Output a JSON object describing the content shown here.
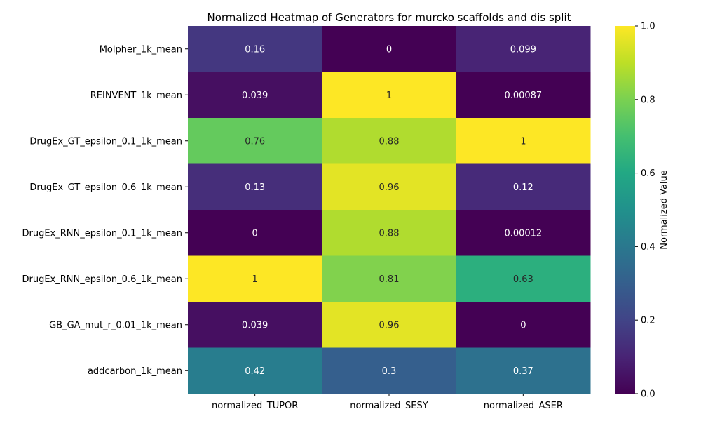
{
  "chart_data": {
    "type": "heatmap",
    "title": "Normalized Heatmap of Generators for murcko scaffolds and dis split",
    "xlabel": "",
    "ylabel": "",
    "rows": [
      "Molpher_1k_mean",
      "REINVENT_1k_mean",
      "DrugEx_GT_epsilon_0.1_1k_mean",
      "DrugEx_GT_epsilon_0.6_1k_mean",
      "DrugEx_RNN_epsilon_0.1_1k_mean",
      "DrugEx_RNN_epsilon_0.6_1k_mean",
      "GB_GA_mut_r_0.01_1k_mean",
      "addcarbon_1k_mean"
    ],
    "columns": [
      "normalized_TUPOR",
      "normalized_SESY",
      "normalized_ASER"
    ],
    "values": [
      [
        0.16,
        0,
        0.099
      ],
      [
        0.039,
        1,
        0.00087
      ],
      [
        0.76,
        0.88,
        1
      ],
      [
        0.13,
        0.96,
        0.12
      ],
      [
        0,
        0.88,
        0.00012
      ],
      [
        1,
        0.81,
        0.63
      ],
      [
        0.039,
        0.96,
        0
      ],
      [
        0.42,
        0.3,
        0.37
      ]
    ],
    "annotations": [
      [
        "0.16",
        "0",
        "0.099"
      ],
      [
        "0.039",
        "1",
        "0.00087"
      ],
      [
        "0.76",
        "0.88",
        "1"
      ],
      [
        "0.13",
        "0.96",
        "0.12"
      ],
      [
        "0",
        "0.88",
        "0.00012"
      ],
      [
        "1",
        "0.81",
        "0.63"
      ],
      [
        "0.039",
        "0.96",
        "0"
      ],
      [
        "0.42",
        "0.3",
        "0.37"
      ]
    ],
    "colormap": "viridis",
    "vmin": 0,
    "vmax": 1,
    "colorbar": {
      "label": "Normalized Value",
      "ticks": [
        0,
        0.2,
        0.4,
        0.6,
        0.8,
        1
      ],
      "tick_labels": [
        "0.0",
        "0.2",
        "0.4",
        "0.6",
        "0.8",
        "1.0"
      ],
      "placement": "right"
    },
    "grid": false
  }
}
